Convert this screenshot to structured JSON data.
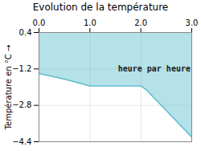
{
  "chart_data": {
    "type": "area",
    "title": "Evolution de la température",
    "ylabel": "Température en °C",
    "x": [
      0,
      0.5,
      1.0,
      1.5,
      2.0,
      2.1,
      3.0
    ],
    "values": [
      -1.4,
      -1.65,
      -1.95,
      -1.95,
      -1.95,
      -2.1,
      -4.2
    ],
    "color": "#5bbccc",
    "xlim": [
      0,
      3
    ],
    "ylim": [
      -4.4,
      0.4
    ],
    "xticks": [
      0,
      1,
      2,
      3
    ],
    "yticks": [
      0.4,
      -1.2,
      -2.8,
      -4.4
    ],
    "grid": true,
    "annotations": [
      {
        "text": "heure par heure",
        "x": 1.55,
        "y": -1.05
      }
    ]
  }
}
